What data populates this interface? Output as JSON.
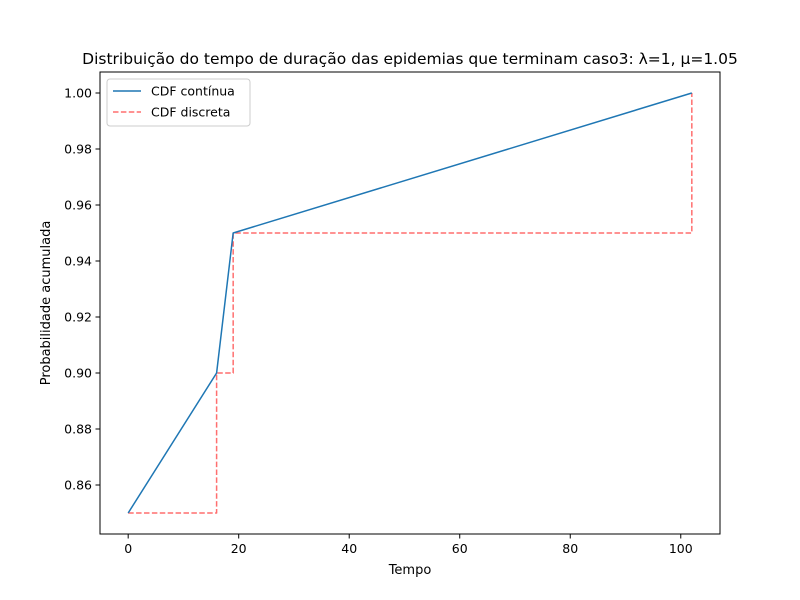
{
  "chart_data": {
    "type": "line",
    "title": "Distribuição do tempo de duração das epidemias que terminam caso3: λ=1, μ=1.05",
    "xlabel": "Tempo",
    "ylabel": "Probabilidade acumulada",
    "xlim": [
      -5.1,
      107.1
    ],
    "ylim": [
      0.8425,
      1.0075
    ],
    "x_ticks": [
      0,
      20,
      40,
      60,
      80,
      100
    ],
    "y_ticks": [
      0.86,
      0.88,
      0.9,
      0.92,
      0.94,
      0.96,
      0.98,
      1.0
    ],
    "y_tick_labels": [
      "0.86",
      "0.88",
      "0.90",
      "0.92",
      "0.94",
      "0.96",
      "0.98",
      "1.00"
    ],
    "grid": false,
    "legend_position": "top-left",
    "series": [
      {
        "name": "CDF contínua",
        "style": "solid",
        "color": "#1f77b4",
        "x": [
          0,
          16,
          19,
          102
        ],
        "y": [
          0.85,
          0.9,
          0.95,
          1.0
        ]
      },
      {
        "name": "CDF discreta",
        "style": "dashed-step-post",
        "color": "#ff6f6f",
        "x": [
          0,
          16,
          19,
          102
        ],
        "y": [
          0.85,
          0.9,
          0.95,
          1.0
        ]
      }
    ]
  }
}
